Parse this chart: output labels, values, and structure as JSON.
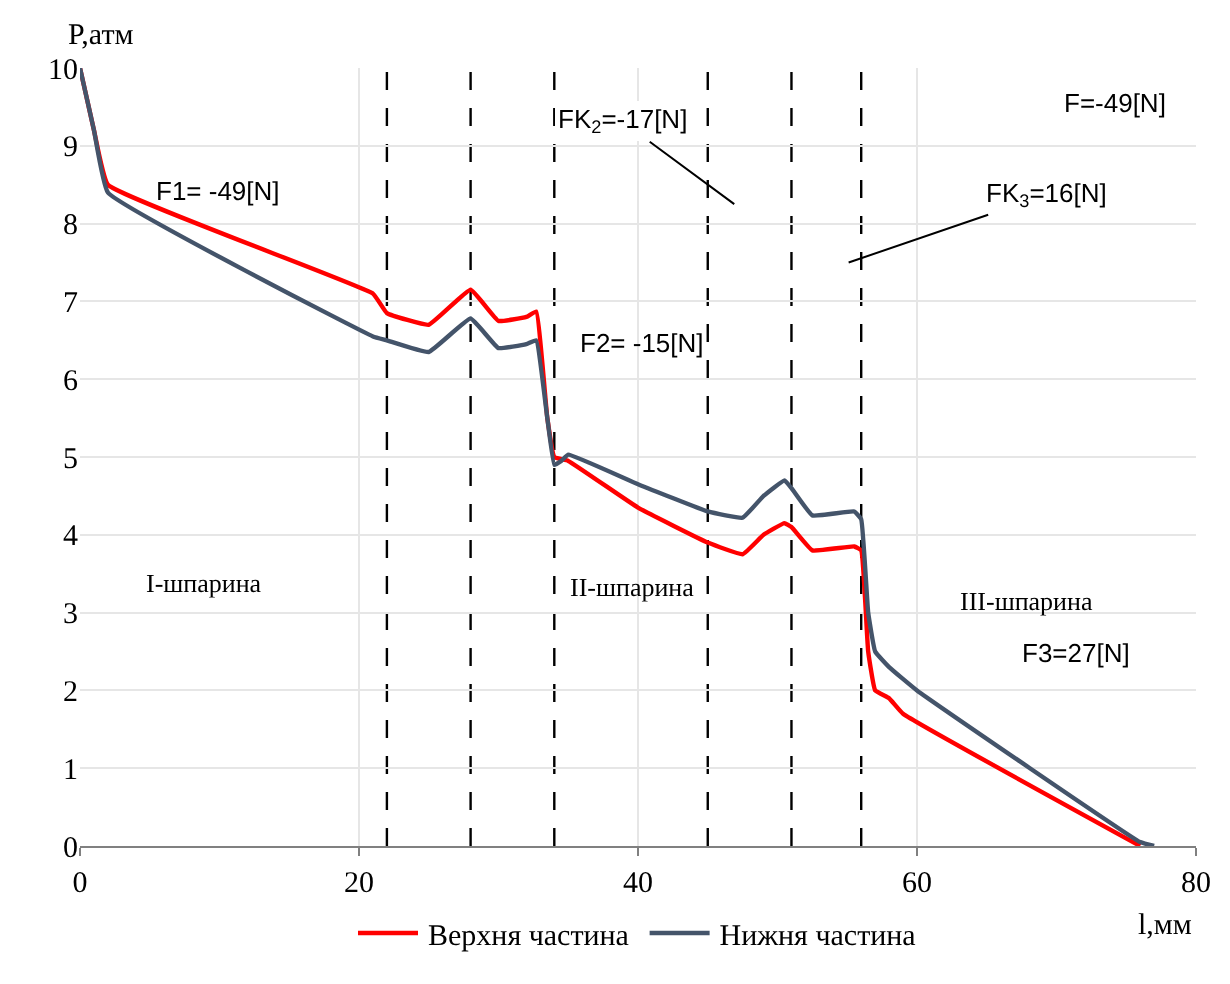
{
  "chart_data": {
    "type": "line",
    "xlabel": "l,мм",
    "ylabel": "P,атм",
    "xlim": [
      0,
      80
    ],
    "xticks": [
      0,
      20,
      40,
      60,
      80
    ],
    "ylim": [
      0,
      10
    ],
    "yticks": [
      0,
      1,
      2,
      3,
      4,
      5,
      6,
      7,
      8,
      9,
      10
    ],
    "grid": true,
    "legend": "bottom",
    "marker": "none",
    "line_style": "solid",
    "series": [
      {
        "name": "Верхня частина",
        "color": "#ff0000",
        "x": [
          0,
          1,
          2,
          21,
          22,
          25,
          28,
          30,
          32,
          32.7,
          33.5,
          34,
          35,
          40,
          45,
          47.5,
          49,
          50.5,
          51,
          52.5,
          55.5,
          56,
          56.5,
          57,
          58,
          59,
          76
        ],
        "values": [
          10,
          9.2,
          8.5,
          7.1,
          6.85,
          6.7,
          7.15,
          6.75,
          6.8,
          6.87,
          5.5,
          5.0,
          4.95,
          4.35,
          3.9,
          3.75,
          4.0,
          4.15,
          4.1,
          3.8,
          3.85,
          3.8,
          2.5,
          2.0,
          1.9,
          1.7,
          0
        ]
      },
      {
        "name": "Нижня частина",
        "color": "#44546a",
        "x": [
          0,
          1,
          2,
          21,
          22,
          25,
          28,
          30,
          32,
          32.7,
          33.5,
          34,
          34.5,
          35,
          40,
          45,
          47.5,
          49,
          50.5,
          51,
          52.5,
          55.5,
          56,
          56.5,
          57,
          58,
          60,
          76,
          77
        ],
        "values": [
          10,
          9.2,
          8.4,
          6.55,
          6.5,
          6.35,
          6.78,
          6.4,
          6.45,
          6.5,
          5.5,
          4.9,
          4.95,
          5.03,
          4.65,
          4.3,
          4.22,
          4.5,
          4.7,
          4.6,
          4.25,
          4.3,
          4.2,
          3.0,
          2.5,
          2.3,
          2.0,
          0.05,
          0
        ]
      }
    ],
    "ref_lines": [
      {
        "axis": "x",
        "value": 22,
        "color": "#000000",
        "line_style": "dashed"
      },
      {
        "axis": "x",
        "value": 28,
        "color": "#000000",
        "line_style": "dashed"
      },
      {
        "axis": "x",
        "value": 34,
        "color": "#000000",
        "line_style": "dashed"
      },
      {
        "axis": "x",
        "value": 45,
        "color": "#000000",
        "line_style": "dashed"
      },
      {
        "axis": "x",
        "value": 51,
        "color": "#000000",
        "line_style": "dashed"
      },
      {
        "axis": "x",
        "value": 56,
        "color": "#000000",
        "line_style": "dashed"
      }
    ],
    "annotations": [
      "F1= -49[N]",
      "F2= -15[N]",
      "F=-49[N]",
      "FK$_{2}$=-17[N]",
      "FK$_{3}$=16[N]",
      "I-шпарина",
      "II-шпарина",
      "III-шпарина",
      "F3=27[N]"
    ]
  }
}
